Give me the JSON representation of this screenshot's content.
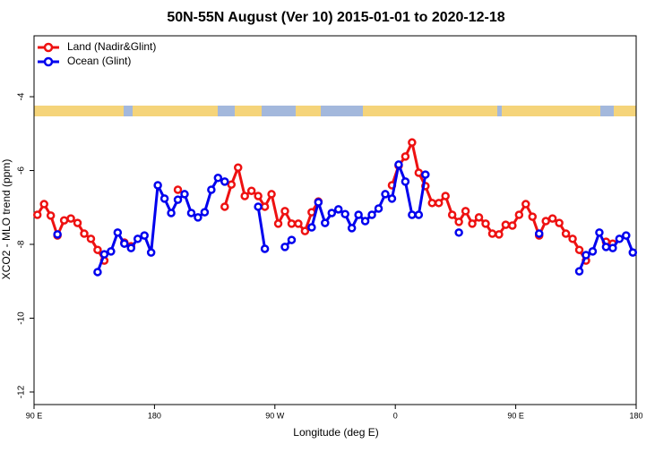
{
  "chart_data": {
    "type": "line",
    "title": "50N-55N August (Ver 10)   2015-01-01 to 2020-12-18",
    "x_label": "Longitude (deg E)",
    "y_label": "XCO2 - MLO trend (ppm)",
    "xlim": [
      90,
      540
    ],
    "ylim": [
      -12.34,
      -2.35
    ],
    "xticks": [
      {
        "value": 90,
        "label": "90 E"
      },
      {
        "value": 180,
        "label": "180"
      },
      {
        "value": 270,
        "label": "90 W"
      },
      {
        "value": 360,
        "label": "0"
      },
      {
        "value": 450,
        "label": "90 E"
      },
      {
        "value": 540,
        "label": "180"
      }
    ],
    "yticks": [
      -12,
      -10,
      -8,
      -6,
      -4
    ],
    "legend": "top-left",
    "x": [
      92.5,
      97.5,
      102.5,
      107.5,
      112.5,
      117.5,
      122.5,
      127.5,
      132.5,
      137.5,
      142.5,
      147.5,
      152.5,
      157.5,
      162.5,
      167.5,
      172.5,
      177.5,
      182.5,
      187.5,
      192.5,
      197.5,
      202.5,
      207.5,
      212.5,
      217.5,
      222.5,
      227.5,
      232.5,
      237.5,
      242.5,
      247.5,
      252.5,
      257.5,
      262.5,
      267.5,
      272.5,
      277.5,
      282.5,
      287.5,
      292.5,
      297.5,
      302.5,
      307.5,
      312.5,
      317.5,
      322.5,
      327.5,
      332.5,
      337.5,
      342.5,
      347.5,
      352.5,
      357.5,
      362.5,
      367.5,
      372.5,
      377.5,
      382.5,
      387.5,
      392.5,
      397.5,
      402.5,
      407.5,
      412.5,
      417.5,
      422.5,
      427.5,
      432.5,
      437.5,
      442.5,
      447.5,
      452.5,
      457.5,
      462.5,
      467.5,
      472.5,
      477.5,
      482.5,
      487.5,
      492.5,
      497.5,
      502.5,
      507.5,
      512.5,
      517.5,
      522.5,
      527.5,
      532.5,
      537.5
    ],
    "series": [
      {
        "name": "Land (Nadir&Glint)",
        "color": "#ee1111",
        "values": [
          -7.2,
          -6.91,
          -7.22,
          -7.76,
          -7.35,
          -7.3,
          -7.42,
          -7.71,
          -7.85,
          -8.15,
          -8.44,
          null,
          null,
          -7.95,
          -8.05,
          null,
          null,
          null,
          null,
          null,
          null,
          -6.52,
          null,
          null,
          null,
          null,
          null,
          null,
          -6.98,
          -6.38,
          -5.92,
          -6.69,
          -6.55,
          -6.69,
          -6.98,
          -6.64,
          -7.44,
          -7.1,
          -7.44,
          -7.44,
          -7.64,
          -7.13,
          -6.84,
          null,
          null,
          null,
          null,
          null,
          null,
          null,
          null,
          null,
          null,
          -6.4,
          -5.87,
          -5.62,
          -5.24,
          -6.06,
          -6.42,
          -6.88,
          -6.88,
          -6.69,
          -7.2,
          -7.39,
          -7.1,
          -7.44,
          -7.27,
          -7.44,
          -7.71,
          -7.73,
          -7.47,
          -7.49,
          -7.2,
          -6.91,
          -7.25,
          -7.76,
          -7.37,
          -7.3,
          -7.42,
          -7.71,
          -7.85,
          -8.15,
          -8.44,
          null,
          null,
          -7.93,
          -7.98,
          null,
          null,
          null
        ]
      },
      {
        "name": "Ocean (Glint)",
        "color": "#0000ee",
        "values": [
          null,
          null,
          null,
          -7.73,
          null,
          null,
          null,
          null,
          null,
          -8.75,
          -8.27,
          -8.19,
          -7.68,
          -7.98,
          -8.1,
          -7.85,
          -7.76,
          -8.22,
          -6.4,
          -6.76,
          -7.15,
          -6.79,
          -6.64,
          -7.15,
          -7.27,
          -7.13,
          -6.52,
          -6.2,
          -6.3,
          null,
          null,
          null,
          null,
          -6.98,
          -8.12,
          null,
          null,
          -8.07,
          -7.88,
          null,
          null,
          -7.54,
          -6.86,
          -7.42,
          -7.15,
          -7.05,
          -7.18,
          -7.56,
          -7.2,
          -7.37,
          -7.2,
          -7.03,
          -6.64,
          -6.76,
          -5.84,
          -6.3,
          -7.2,
          -7.2,
          -6.11,
          null,
          null,
          null,
          null,
          -7.68,
          null,
          null,
          null,
          null,
          null,
          null,
          null,
          null,
          null,
          null,
          null,
          -7.71,
          null,
          null,
          null,
          null,
          null,
          -8.73,
          -8.29,
          -8.19,
          -7.68,
          -8.07,
          -8.1,
          -7.85,
          -7.76,
          -8.22
        ]
      }
    ]
  }
}
